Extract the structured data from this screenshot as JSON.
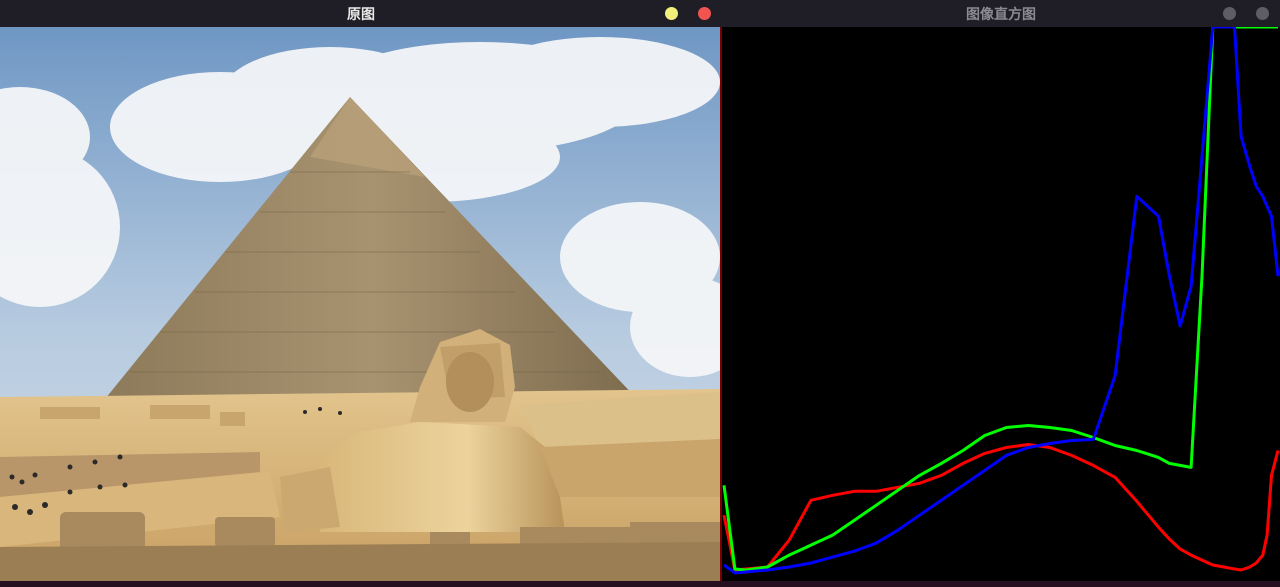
{
  "left_window": {
    "title": "原图",
    "controls": [
      "minimize",
      "close"
    ],
    "colors": {
      "minimize": "#f2f07a",
      "close": "#f25450"
    }
  },
  "right_window": {
    "title": "图像直方图",
    "controls": [
      "minimize",
      "close"
    ],
    "colors": {
      "control": "#5e5d66",
      "title": "#8a8990"
    }
  },
  "image": {
    "sky": "#a9c3dd",
    "sand": "#d9b97c",
    "pyramid": "#9e8a64"
  },
  "chart_data": {
    "type": "line",
    "x": [
      0,
      5,
      10,
      20,
      30,
      40,
      50,
      60,
      70,
      80,
      90,
      100,
      110,
      120,
      130,
      140,
      150,
      160,
      170,
      180,
      190,
      200,
      205,
      210,
      215,
      220,
      225,
      230,
      235,
      238,
      242,
      245,
      248,
      250,
      252,
      255
    ],
    "xlim": [
      0,
      255
    ],
    "series": [
      {
        "color": "#ff0000",
        "values": [
          60,
          5,
          6,
          8,
          35,
          75,
          80,
          84,
          84,
          88,
          92,
          100,
          112,
          122,
          128,
          131,
          128,
          120,
          110,
          98,
          74,
          48,
          36,
          26,
          20,
          15,
          10,
          8,
          6,
          5,
          8,
          12,
          20,
          40,
          100,
          125
        ]
      },
      {
        "color": "#00ff00",
        "values": [
          90,
          6,
          5,
          8,
          20,
          30,
          40,
          55,
          70,
          85,
          100,
          112,
          125,
          140,
          148,
          150,
          148,
          145,
          138,
          130,
          125,
          118,
          112,
          110,
          108,
          300,
          560,
          600,
          620,
          630,
          635,
          640,
          600,
          560,
          560,
          600
        ]
      },
      {
        "color": "#0000ff",
        "values": [
          10,
          2,
          3,
          5,
          8,
          12,
          18,
          24,
          32,
          45,
          60,
          75,
          90,
          105,
          120,
          128,
          132,
          135,
          136,
          200,
          380,
          360,
          300,
          250,
          290,
          420,
          560,
          620,
          600,
          440,
          410,
          390,
          380,
          370,
          360,
          300
        ]
      }
    ]
  }
}
